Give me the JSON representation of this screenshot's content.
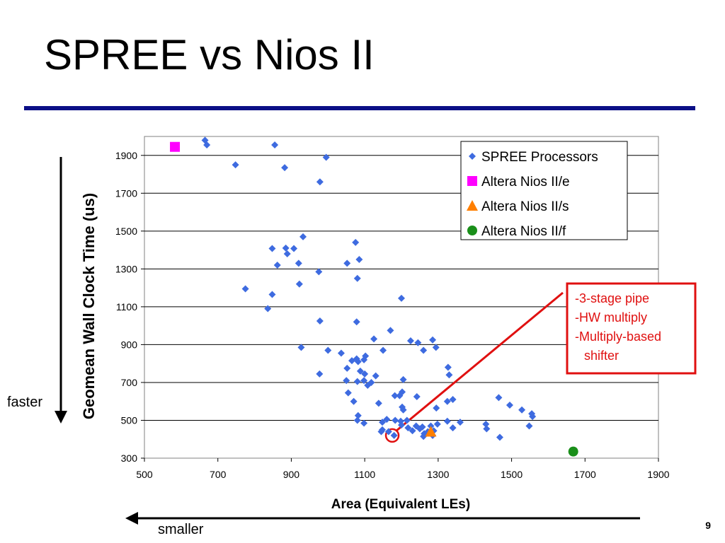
{
  "slide": {
    "title": "SPREE vs Nios II",
    "page_number": "9",
    "faster_label": "faster",
    "smaller_label": "smaller"
  },
  "chart_data": {
    "type": "scatter",
    "xlabel": "Area (Equivalent LEs)",
    "ylabel": "Geomean Wall Clock Time (us)",
    "xlim": [
      500,
      1900
    ],
    "ylim": [
      300,
      2000
    ],
    "xticks": [
      500,
      700,
      900,
      1100,
      1300,
      1500,
      1700,
      1900
    ],
    "yticks": [
      300,
      500,
      700,
      900,
      1100,
      1300,
      1500,
      1700,
      1900
    ],
    "grid": "horizontal",
    "legend_position": "top-right",
    "series": [
      {
        "name": "SPREE Processors",
        "marker": "diamond",
        "color": "#3e6be0",
        "points": [
          [
            665,
            1980
          ],
          [
            670,
            1955
          ],
          [
            855,
            1955
          ],
          [
            995,
            1890
          ],
          [
            748,
            1850
          ],
          [
            882,
            1835
          ],
          [
            978,
            1760
          ],
          [
            932,
            1470
          ],
          [
            848,
            1408
          ],
          [
            885,
            1410
          ],
          [
            907,
            1408
          ],
          [
            889,
            1380
          ],
          [
            862,
            1320
          ],
          [
            920,
            1330
          ],
          [
            1075,
            1440
          ],
          [
            1085,
            1350
          ],
          [
            1052,
            1330
          ],
          [
            975,
            1285
          ],
          [
            1080,
            1250
          ],
          [
            922,
            1220
          ],
          [
            775,
            1195
          ],
          [
            848,
            1165
          ],
          [
            836,
            1090
          ],
          [
            1200,
            1145
          ],
          [
            978,
            1025
          ],
          [
            1078,
            1020
          ],
          [
            1170,
            975
          ],
          [
            1125,
            930
          ],
          [
            1225,
            920
          ],
          [
            1245,
            910
          ],
          [
            1285,
            925
          ],
          [
            1260,
            870
          ],
          [
            1294,
            885
          ],
          [
            927,
            885
          ],
          [
            1000,
            870
          ],
          [
            1036,
            855
          ],
          [
            1150,
            870
          ],
          [
            1065,
            815
          ],
          [
            1078,
            825
          ],
          [
            1082,
            810
          ],
          [
            1098,
            820
          ],
          [
            1102,
            840
          ],
          [
            1052,
            775
          ],
          [
            1088,
            760
          ],
          [
            1100,
            745
          ],
          [
            1130,
            735
          ],
          [
            1118,
            700
          ],
          [
            1098,
            710
          ],
          [
            1050,
            710
          ],
          [
            1080,
            705
          ],
          [
            1108,
            685
          ],
          [
            1205,
            715
          ],
          [
            977,
            745
          ],
          [
            1327,
            780
          ],
          [
            1330,
            740
          ],
          [
            1055,
            645
          ],
          [
            1202,
            650
          ],
          [
            1182,
            630
          ],
          [
            1195,
            630
          ],
          [
            1242,
            625
          ],
          [
            1070,
            600
          ],
          [
            1138,
            590
          ],
          [
            1202,
            570
          ],
          [
            1205,
            555
          ],
          [
            1295,
            565
          ],
          [
            1340,
            610
          ],
          [
            1325,
            600
          ],
          [
            1465,
            620
          ],
          [
            1495,
            580
          ],
          [
            1528,
            555
          ],
          [
            1555,
            535
          ],
          [
            1557,
            520
          ],
          [
            1548,
            470
          ],
          [
            1082,
            525
          ],
          [
            1080,
            500
          ],
          [
            1098,
            485
          ],
          [
            1148,
            490
          ],
          [
            1160,
            505
          ],
          [
            1183,
            500
          ],
          [
            1198,
            495
          ],
          [
            1215,
            500
          ],
          [
            1240,
            470
          ],
          [
            1257,
            465
          ],
          [
            1280,
            470
          ],
          [
            1298,
            480
          ],
          [
            1325,
            495
          ],
          [
            1360,
            490
          ],
          [
            1148,
            450
          ],
          [
            1165,
            440
          ],
          [
            1200,
            475
          ],
          [
            1218,
            460
          ],
          [
            1230,
            445
          ],
          [
            1250,
            455
          ],
          [
            1262,
            430
          ],
          [
            1272,
            440
          ],
          [
            1288,
            445
          ],
          [
            1430,
            480
          ],
          [
            1432,
            455
          ],
          [
            1145,
            440
          ],
          [
            1180,
            420
          ],
          [
            1260,
            415
          ],
          [
            1285,
            420
          ],
          [
            1340,
            460
          ],
          [
            1468,
            410
          ]
        ]
      },
      {
        "name": "Altera Nios II/e",
        "marker": "square",
        "color": "#ff00ff",
        "points": [
          [
            583,
            1945
          ]
        ]
      },
      {
        "name": "Altera Nios II/s",
        "marker": "triangle",
        "color": "#ff7f00",
        "points": [
          [
            1280,
            440
          ]
        ]
      },
      {
        "name": "Altera Nios II/f",
        "marker": "circle",
        "color": "#1a8f1a",
        "points": [
          [
            1668,
            335
          ]
        ]
      }
    ],
    "annotation": {
      "lines": [
        "-3-stage pipe",
        "-HW multiply",
        "-Multiply-based",
        "shifter"
      ],
      "color": "#e01010",
      "target": [
        1175,
        420
      ]
    }
  }
}
